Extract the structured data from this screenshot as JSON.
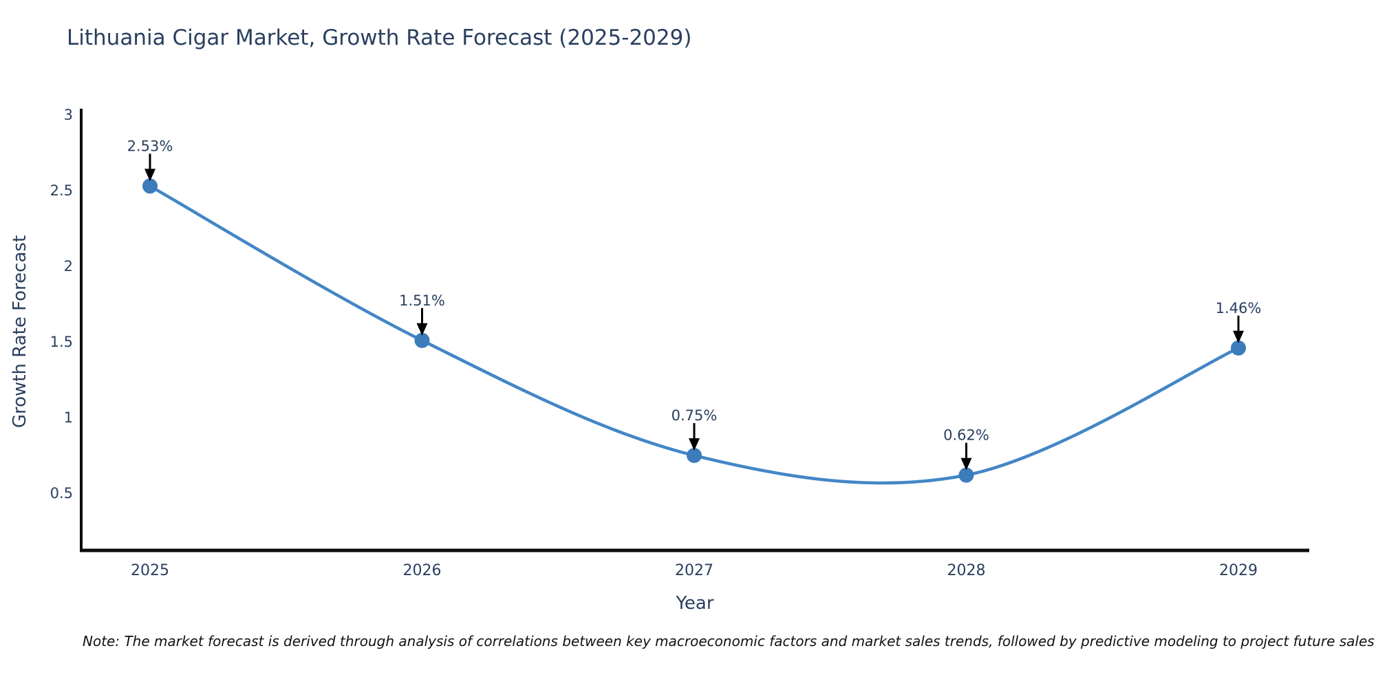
{
  "title": "Lithuania Cigar Market, Growth Rate Forecast (2025-2029)",
  "note": "Note: The market forecast is derived through analysis of correlations between key macroeconomic factors and market sales trends, followed by predictive modeling to project future sales",
  "chart_data": {
    "type": "line",
    "line_shape": "spline",
    "title": "Lithuania Cigar Market, Growth Rate Forecast (2025-2029)",
    "xlabel": "Year",
    "ylabel": "Growth Rate Forecast",
    "categories": [
      "2025",
      "2026",
      "2027",
      "2028",
      "2029"
    ],
    "values": [
      2.53,
      1.51,
      0.75,
      0.62,
      1.46
    ],
    "point_labels": [
      "2.53%",
      "1.51%",
      "0.75%",
      "0.62%",
      "1.46%"
    ],
    "yticks": [
      0.5,
      1,
      1.5,
      2,
      2.5,
      3
    ],
    "ytick_labels": [
      "0.5",
      "1",
      "1.5",
      "2",
      "2.5",
      "3"
    ],
    "ylim": [
      0.12,
      3.03
    ],
    "grid": false,
    "legend": "none",
    "markers": true,
    "annotations_arrows": true,
    "colors": {
      "line": "#4386c6",
      "marker": "#3c7cba",
      "axis": "#0b0b0b",
      "tick_text": "#2a3f5f",
      "annotation_text": "#2a3f5f",
      "arrow": "#000000",
      "title_text": "#2a3f5f"
    }
  }
}
